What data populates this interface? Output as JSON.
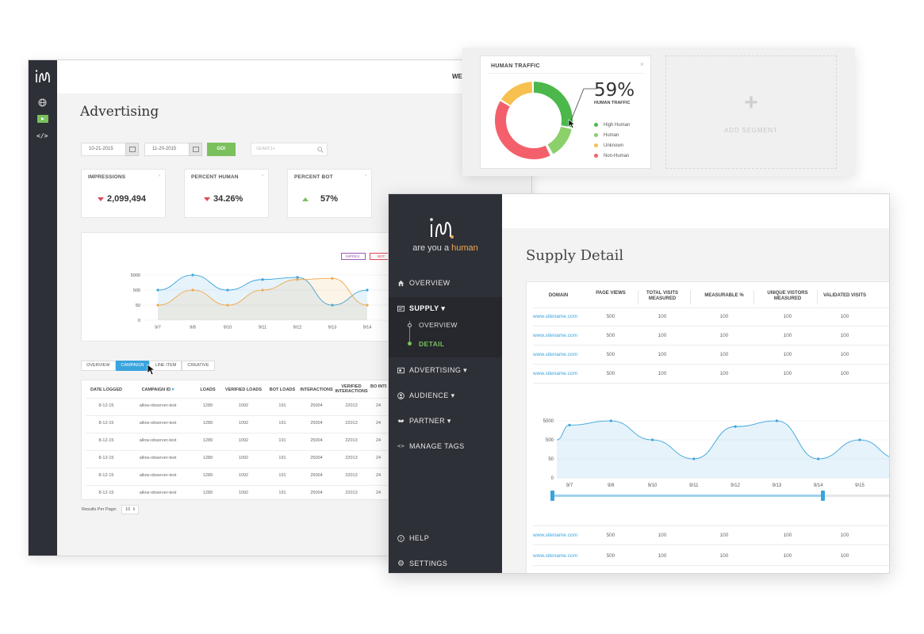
{
  "advertising": {
    "header_clipped": "WE",
    "page_title": "Advertising",
    "date_from": "10-21-2015",
    "date_to": "11-20-2015",
    "go_label": "GO!",
    "search_placeholder": "SEARCH",
    "kpis": [
      {
        "title": "IMPRESSIONS",
        "value": "2,099,494",
        "trend": "down"
      },
      {
        "title": "PERCENT HUMAN",
        "value": "34.26%",
        "trend": "down"
      },
      {
        "title": "PERCENT BOT",
        "value": "57%",
        "trend": "up"
      }
    ],
    "legend_chips": [
      {
        "label": "IMPRES.",
        "color": "#9b59b6"
      },
      {
        "label": "BOT",
        "color": "#e3475a"
      }
    ],
    "tabs": [
      "OVERVIEW",
      "CAMPAIGN",
      "LINE ITEM",
      "CREATIVE"
    ],
    "active_tab": "CAMPAIGN",
    "table": {
      "headers": [
        "DATE LOGGED",
        "CAMPAIGN ID",
        "LOADS",
        "VERIFIED LOADS",
        "BOT LOADS",
        "INTERACTIONS",
        "VERIFIED INTERACTIONS",
        "BO INTERA"
      ],
      "sort_indicator": "▾",
      "rows": [
        [
          "8-12-15",
          "allow-observer-test",
          "1289",
          "1092",
          "191",
          "25004",
          "22013",
          "24"
        ],
        [
          "8-12-15",
          "allow-observer-test",
          "1289",
          "1092",
          "191",
          "25004",
          "22013",
          "24"
        ],
        [
          "8-12-15",
          "allow-observer-test",
          "1289",
          "1092",
          "191",
          "25004",
          "22013",
          "24"
        ],
        [
          "8-12-15",
          "allow-observer-test",
          "1289",
          "1092",
          "191",
          "25004",
          "22013",
          "24"
        ],
        [
          "8-12-15",
          "allow-observer-test",
          "1289",
          "1092",
          "191",
          "25004",
          "22013",
          "24"
        ],
        [
          "8-12-15",
          "allow-observer-test",
          "1289",
          "1092",
          "191",
          "25004",
          "22013",
          "24"
        ]
      ]
    },
    "results_per_page_label": "Results Per Page:",
    "results_per_page_value": "10",
    "chart_data": {
      "type": "area",
      "x": [
        "9/7",
        "9/8",
        "9/10",
        "9/11",
        "9/12",
        "9/13",
        "9/14"
      ],
      "y_ticks": [
        "5000",
        "500",
        "50",
        "0"
      ],
      "series": [
        {
          "color": "#3aa4dd",
          "values": [
            500,
            5000,
            500,
            2500,
            3500,
            50,
            500
          ]
        },
        {
          "color": "#f0a94e",
          "values": [
            50,
            500,
            50,
            500,
            2500,
            3000,
            50
          ]
        }
      ]
    }
  },
  "human_traffic": {
    "title": "HUMAN TRAFFIC",
    "close": "×",
    "percent": "59%",
    "percent_label": "HUMAN TRAFFIC",
    "legend": [
      {
        "label": "High Human",
        "color": "#4cb84c"
      },
      {
        "label": "Human",
        "color": "#8bd06a"
      },
      {
        "label": "Unknown",
        "color": "#f7c04f"
      },
      {
        "label": "Non-Human",
        "color": "#f3606b"
      }
    ],
    "add_segment_label": "ADD SEGMENT",
    "plus": "+"
  },
  "supply": {
    "brand": {
      "prefix": "are you a ",
      "highlight": "human"
    },
    "page_title": "Supply Detail",
    "nav": [
      {
        "label": "OVERVIEW",
        "icon": "home-icon"
      },
      {
        "label": "SUPPLY ▾",
        "icon": "supply-icon"
      },
      {
        "label": "OVERVIEW",
        "icon": "sub"
      },
      {
        "label": "DETAIL",
        "icon": "sub"
      },
      {
        "label": "ADVERTISING ▾",
        "icon": "advertising-icon"
      },
      {
        "label": "AUDIENCE ▾",
        "icon": "audience-icon"
      },
      {
        "label": "PARTNER ▾",
        "icon": "partner-icon"
      },
      {
        "label": "MANAGE TAGS",
        "icon": "code-icon"
      }
    ],
    "nav_bottom": [
      {
        "label": "HELP",
        "icon": "help-icon"
      },
      {
        "label": "SETTINGS",
        "icon": "gear-icon"
      }
    ],
    "table": {
      "headers": [
        "DOMAIN",
        "PAGE VIEWS",
        "TOTAL VISITS MEASURED",
        "MEASURABLE %",
        "UNIQUE VISTORS MEASURED",
        "VALIDATED VISITS"
      ],
      "rows": [
        [
          "www.sitename.com",
          "500",
          "100",
          "100",
          "100",
          "100"
        ],
        [
          "www.sitename.com",
          "500",
          "100",
          "100",
          "100",
          "100"
        ],
        [
          "www.sitename.com",
          "500",
          "100",
          "100",
          "100",
          "100"
        ],
        [
          "www.sitename.com",
          "500",
          "100",
          "100",
          "100",
          "100"
        ]
      ],
      "rows_bottom": [
        [
          "www.sitename.com",
          "500",
          "100",
          "100",
          "100",
          "100"
        ],
        [
          "www.sitename.com",
          "500",
          "100",
          "100",
          "100",
          "100"
        ]
      ]
    },
    "chart_data": {
      "type": "area",
      "x": [
        "9/7",
        "9/8",
        "9/10",
        "9/11",
        "9/12",
        "9/13",
        "9/14",
        "9/15"
      ],
      "y_ticks": [
        "5000",
        "500",
        "50",
        "0"
      ],
      "series": [
        {
          "color": "#3aa4dd",
          "values": [
            3000,
            5000,
            500,
            50,
            2500,
            5000,
            50,
            500
          ]
        }
      ]
    }
  },
  "colors": {
    "sidebar": "#2e3038",
    "accent": "#3aa4dd",
    "go": "#7ac05c",
    "brand_orange": "#f0a94e"
  }
}
